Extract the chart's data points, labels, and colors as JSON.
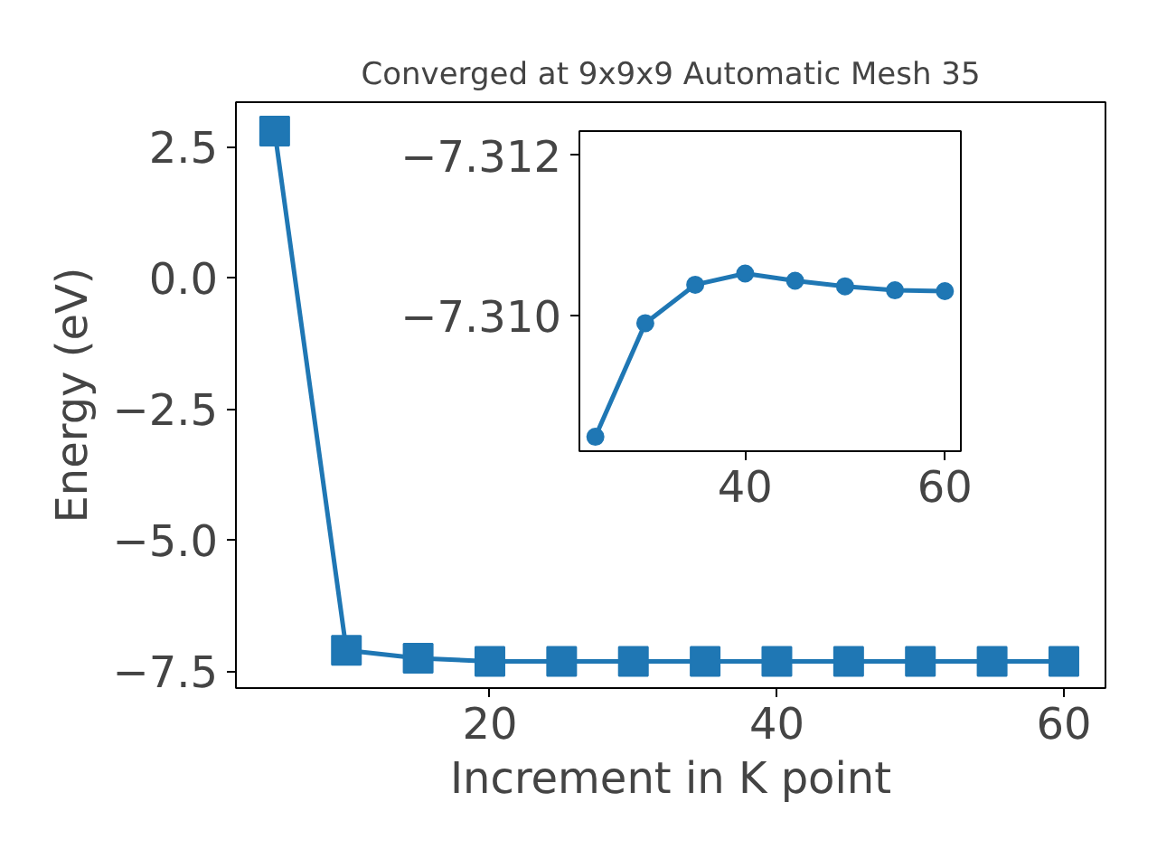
{
  "chart_data": [
    {
      "type": "line",
      "title": "Converged at 9x9x9 Automatic Mesh 35",
      "xlabel": "Increment in K point",
      "ylabel": "Energy (eV)",
      "x": [
        5,
        10,
        15,
        20,
        25,
        30,
        35,
        40,
        45,
        50,
        55,
        60
      ],
      "series": [
        {
          "color": "#1f77b4",
          "values": [
            2.8,
            -7.1,
            -7.25,
            -7.31,
            -7.31,
            -7.31,
            -7.31,
            -7.31,
            -7.31,
            -7.31,
            -7.31,
            -7.31
          ]
        }
      ],
      "xlim": [
        2.3,
        62.9
      ],
      "ylim": [
        -7.82,
        3.35
      ],
      "xticks": [
        20,
        40,
        60
      ],
      "yticks": [
        {
          "value": 2.5,
          "label": "2.5"
        },
        {
          "value": 0,
          "label": "0.0"
        },
        {
          "value": -2.5,
          "label": "−2.5"
        },
        {
          "value": -5,
          "label": "−5.0"
        },
        {
          "value": -7.5,
          "label": "−7.5"
        }
      ],
      "marker": "square",
      "line_style": "solid",
      "grid": false
    },
    {
      "type": "line",
      "x": [
        25,
        30,
        35,
        40,
        45,
        50,
        55,
        60
      ],
      "series": [
        {
          "color": "#1f77b4",
          "values": [
            -7.30848,
            -7.3099,
            -7.31038,
            -7.31052,
            -7.31043,
            -7.31036,
            -7.31031,
            -7.3103
          ]
        }
      ],
      "xlim": [
        23.4,
        61.6
      ],
      "ylim": [
        -7.3083,
        -7.3123
      ],
      "xticks": [
        40,
        60
      ],
      "yticks": [
        {
          "value": -7.312,
          "label": "−7.312"
        },
        {
          "value": -7.31,
          "label": "−7.310"
        }
      ],
      "marker": "circle",
      "line_style": "solid",
      "grid": false
    }
  ]
}
